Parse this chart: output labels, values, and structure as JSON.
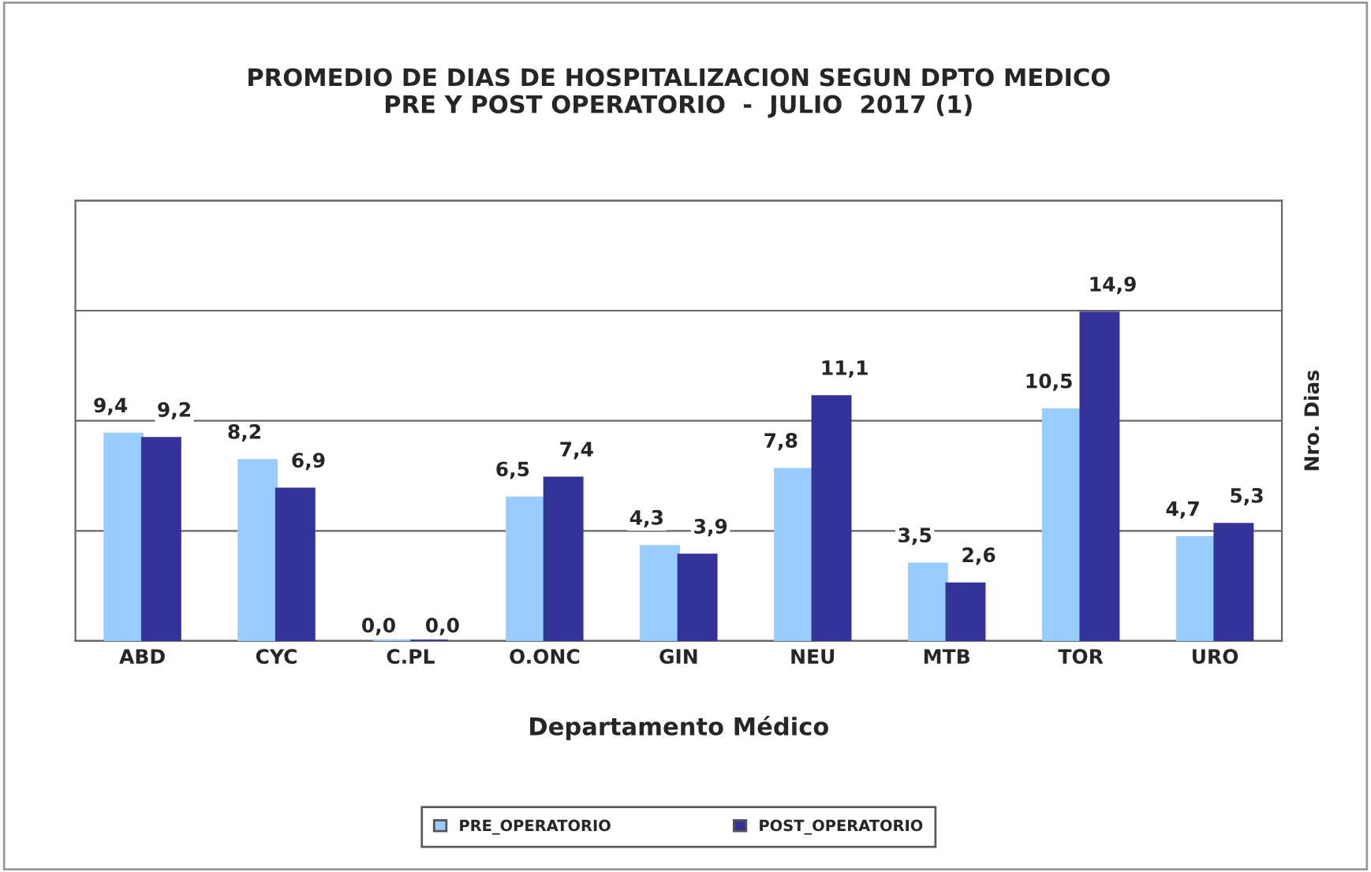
{
  "chart_data": {
    "type": "bar",
    "title": "PROMEDIO DE DIAS DE HOSPITALIZACION SEGUN DPTO MEDICO\nPRE Y POST OPERATORIO  -  JULIO  2017 (1)",
    "xlabel": "Departamento Médico",
    "ylabel": "Nro. Dias",
    "categories": [
      "ABD",
      "CYC",
      "C.PL",
      "O.ONC",
      "GIN",
      "NEU",
      "MTB",
      "TOR",
      "URO"
    ],
    "series": [
      {
        "name": "PRE_OPERATORIO",
        "color": "#99ccff",
        "values": [
          9.4,
          8.2,
          0.0,
          6.5,
          4.3,
          7.8,
          3.5,
          10.5,
          4.7
        ],
        "value_labels": [
          "9,4",
          "8,2",
          "0,0",
          "6,5",
          "4,3",
          "7,8",
          "3,5",
          "10,5",
          "4,7"
        ]
      },
      {
        "name": "POST_OPERATORIO",
        "color": "#333399",
        "values": [
          9.2,
          6.9,
          0.0,
          7.4,
          3.9,
          11.1,
          2.6,
          14.9,
          5.3
        ],
        "value_labels": [
          "9,2",
          "6,9",
          "0,0",
          "7,4",
          "3,9",
          "11,1",
          "2,6",
          "14,9",
          "5,3"
        ]
      }
    ],
    "ylim": [
      0,
      20
    ],
    "yticks": [
      {
        "value": 0,
        "label": null
      },
      {
        "value": 5,
        "label": null
      },
      {
        "value": 10,
        "label": null
      },
      {
        "value": 15,
        "label": null
      },
      {
        "value": 20,
        "label": null
      }
    ],
    "grid": "y",
    "legend": "bottom",
    "tick_labels": "x"
  }
}
